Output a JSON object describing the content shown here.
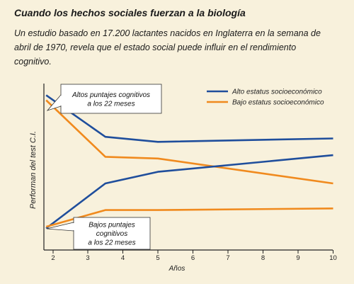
{
  "page": {
    "title": "Cuando los hechos sociales fuerzan a la biología",
    "subtitle": "Un estudio basado en 17.200 lactantes nacidos en Inglaterra en la semana de abril de 1970, revela que el estado social puede influir en el rendimiento cognitivo."
  },
  "chart_data": {
    "type": "line",
    "title": "",
    "xlabel": "Años",
    "ylabel": "Performan del test C.I.",
    "x_ticks": [
      "2",
      "3",
      "4",
      "5",
      "6",
      "7",
      "8",
      "9",
      "10"
    ],
    "grid": false,
    "legend_position": "top-right",
    "series": [
      {
        "name": "Alto estatus socioeconómico",
        "group": "Altos puntajes cognitivos a los 22 meses",
        "color": "#1f4e9c",
        "x": [
          1.8,
          3.5,
          5,
          10
        ],
        "y": [
          93,
          68,
          65,
          67
        ]
      },
      {
        "name": "Bajo estatus socioeconómico",
        "group": "Altos puntajes cognitivos a los 22 meses",
        "color": "#f08a1e",
        "x": [
          1.8,
          3.5,
          5,
          10
        ],
        "y": [
          90,
          56,
          55,
          40
        ]
      },
      {
        "name": "Alto estatus socioeconómico",
        "group": "Bajos puntajes cognitivos a los 22 meses",
        "color": "#1f4e9c",
        "x": [
          1.8,
          3.5,
          5,
          10
        ],
        "y": [
          13,
          40,
          47,
          57
        ]
      },
      {
        "name": "Bajo estatus socioeconómico",
        "group": "Bajos puntajes cognitivos a los 22 meses",
        "color": "#f08a1e",
        "x": [
          1.8,
          3.5,
          5,
          10
        ],
        "y": [
          14,
          24,
          24,
          25
        ]
      }
    ],
    "legend": [
      {
        "label": "Alto estatus socioeconómico",
        "color": "#1f4e9c"
      },
      {
        "label": "Bajo estatus socioeconómico",
        "color": "#f08a1e"
      }
    ],
    "annotations": [
      {
        "lines": [
          "Altos puntajes cognitivos",
          "a los 22 meses"
        ]
      },
      {
        "lines": [
          "Bajos puntajes",
          "cognitivos",
          "a los 22 meses"
        ]
      }
    ]
  }
}
